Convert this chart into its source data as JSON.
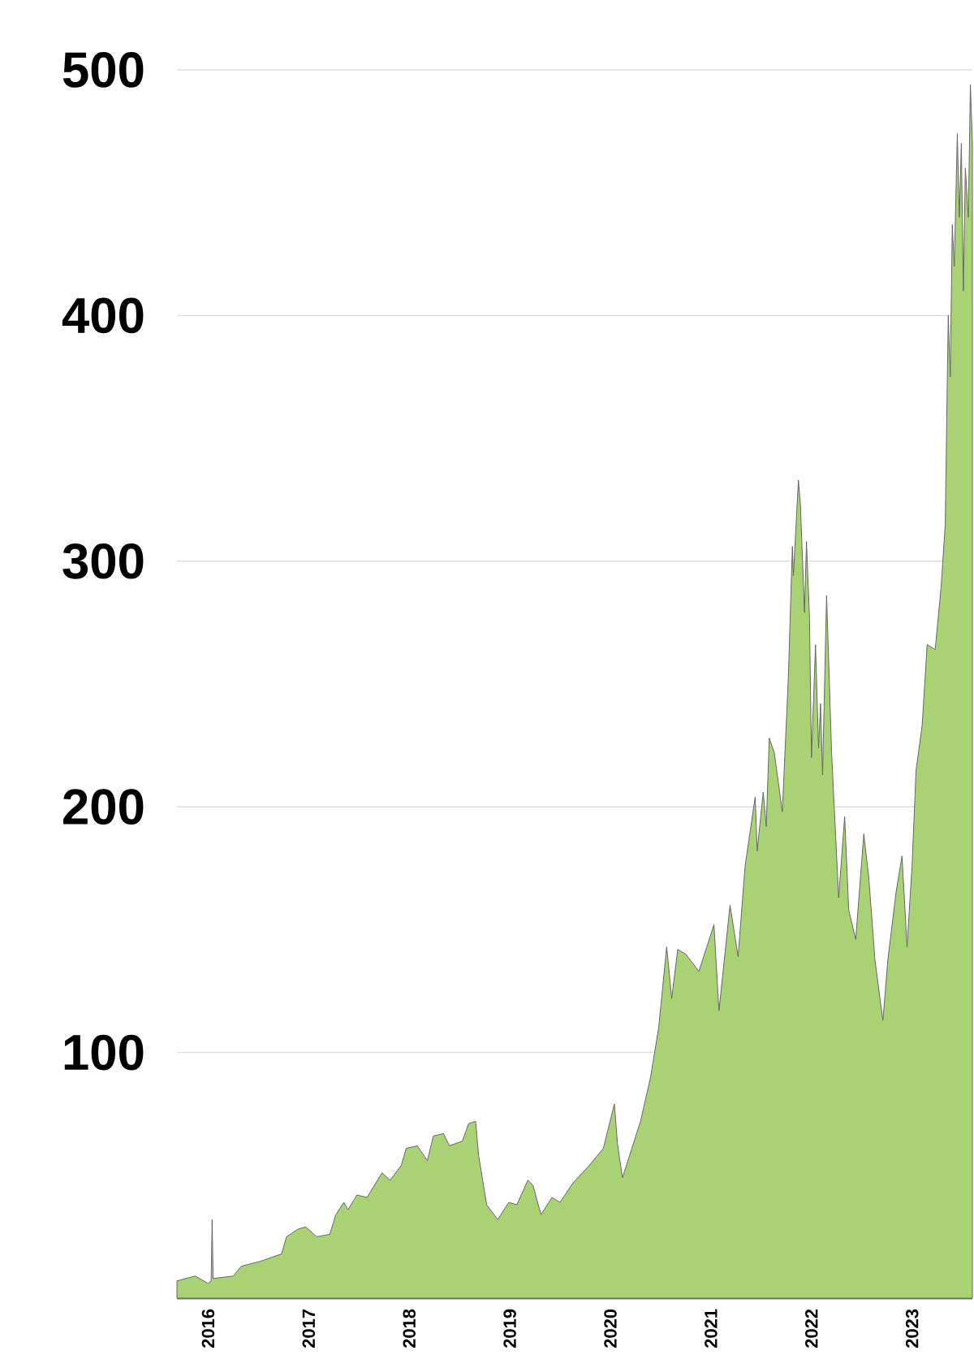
{
  "chart_data": {
    "type": "area",
    "x": [
      2015.69,
      2015.87,
      2016.0,
      2016.03,
      2016.04,
      2016.05,
      2016.25,
      2016.33,
      2016.52,
      2016.73,
      2016.78,
      2016.89,
      2016.97,
      2017.08,
      2017.21,
      2017.27,
      2017.35,
      2017.39,
      2017.48,
      2017.58,
      2017.73,
      2017.81,
      2017.92,
      2017.97,
      2018.08,
      2018.18,
      2018.24,
      2018.34,
      2018.4,
      2018.53,
      2018.59,
      2018.66,
      2018.69,
      2018.77,
      2018.88,
      2018.99,
      2019.07,
      2019.18,
      2019.23,
      2019.31,
      2019.42,
      2019.5,
      2019.63,
      2019.79,
      2019.93,
      2020.04,
      2020.07,
      2020.12,
      2020.3,
      2020.4,
      2020.48,
      2020.56,
      2020.61,
      2020.67,
      2020.75,
      2020.88,
      2021.03,
      2021.08,
      2021.19,
      2021.27,
      2021.34,
      2021.44,
      2021.46,
      2021.52,
      2021.55,
      2021.58,
      2021.63,
      2021.71,
      2021.77,
      2021.81,
      2021.82,
      2021.87,
      2021.89,
      2021.93,
      2021.95,
      2021.98,
      2022.0,
      2022.04,
      2022.07,
      2022.09,
      2022.11,
      2022.15,
      2022.2,
      2022.27,
      2022.33,
      2022.37,
      2022.44,
      2022.52,
      2022.57,
      2022.63,
      2022.71,
      2022.76,
      2022.84,
      2022.9,
      2022.95,
      2023.0,
      2023.04,
      2023.1,
      2023.15,
      2023.23,
      2023.29,
      2023.33,
      2023.36,
      2023.38,
      2023.4,
      2023.42,
      2023.45,
      2023.47,
      2023.49,
      2023.51,
      2023.53,
      2023.56,
      2023.58,
      2023.6
    ],
    "values": [
      7,
      9,
      6,
      7,
      32,
      8,
      9,
      13,
      15,
      18,
      25,
      28,
      29,
      25,
      26,
      34,
      39,
      36,
      42,
      41,
      51,
      48,
      54,
      61,
      62,
      56,
      66,
      67,
      62,
      64,
      71,
      72,
      58,
      38,
      32,
      39,
      38,
      48,
      46,
      34,
      41,
      39,
      47,
      54,
      61,
      79,
      63,
      49,
      72,
      90,
      110,
      143,
      122,
      142,
      140,
      133,
      152,
      117,
      160,
      139,
      176,
      204,
      182,
      206,
      192,
      228,
      222,
      198,
      253,
      306,
      294,
      333,
      323,
      279,
      308,
      277,
      220,
      266,
      224,
      242,
      213,
      286,
      222,
      163,
      196,
      158,
      146,
      189,
      171,
      138,
      113,
      138,
      165,
      180,
      143,
      176,
      215,
      233,
      266,
      264,
      290,
      315,
      400,
      375,
      437,
      420,
      474,
      440,
      470,
      410,
      460,
      440,
      494,
      470
    ],
    "color": "#a9d275",
    "xlim": [
      2015.69,
      2023.6
    ],
    "ylim": [
      0,
      500
    ],
    "xticks": [
      2016,
      2017,
      2018,
      2019,
      2020,
      2021,
      2022,
      2023
    ],
    "yticks": [
      100,
      200,
      300,
      400,
      500
    ],
    "grid": "y"
  }
}
